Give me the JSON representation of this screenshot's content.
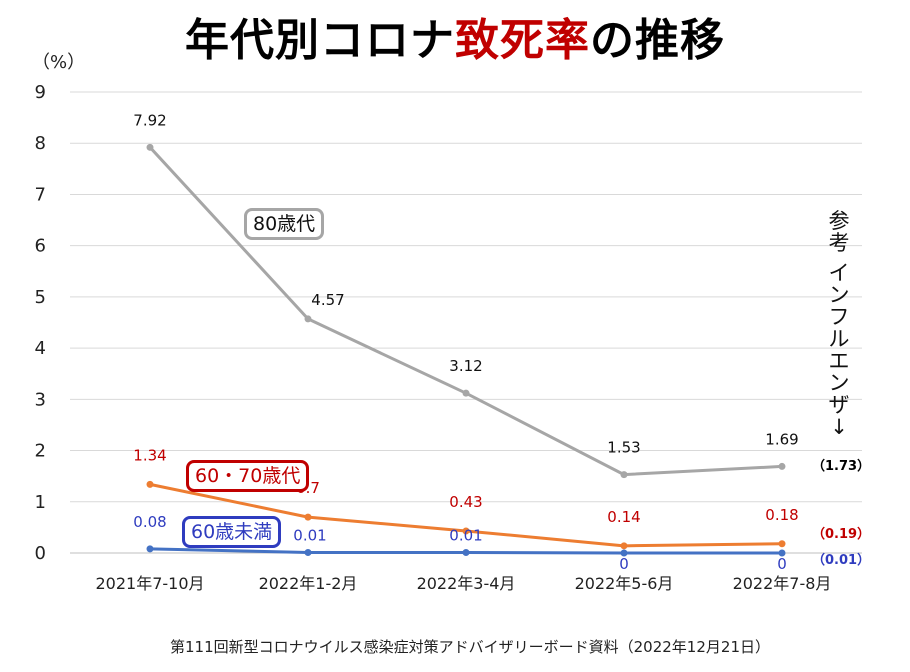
{
  "title": {
    "part1": "年代別コロナ",
    "accent": "致死率",
    "part2": "の推移"
  },
  "unit_label": "（%）",
  "source": "第111回新型コロナウイルス感染症対策アドバイザリーボード資料（2022年12月21日）",
  "reference": {
    "label_chars": [
      "参",
      "考",
      " ",
      "イ",
      "ン",
      "フ",
      "ル",
      "エ",
      "ン",
      "ザ"
    ],
    "arrow": "↓",
    "values": [
      {
        "text": "（1.73）",
        "color": "#111111"
      },
      {
        "text": "（0.19）",
        "color": "#c00000"
      },
      {
        "text": "（0.01）",
        "color": "#2f3cbf"
      }
    ]
  },
  "chart_data": {
    "type": "line",
    "categories": [
      "2021年7-10月",
      "2022年1-2月",
      "2022年3-4月",
      "2022年5-6月",
      "2022年7-8月"
    ],
    "ylim": [
      0,
      9
    ],
    "yticks": [
      "0",
      "1",
      "2",
      "3",
      "4",
      "5",
      "6",
      "7",
      "8",
      "9"
    ],
    "grid": true,
    "series": [
      {
        "name": "80歳代",
        "color": "#a6a6a6",
        "values": [
          7.92,
          4.57,
          3.12,
          1.53,
          1.69
        ],
        "labels": [
          "7.92",
          "4.57",
          "3.12",
          "1.53",
          "1.69"
        ],
        "label_color": "#111111"
      },
      {
        "name": "60・70歳代",
        "color": "#ed7d31",
        "values": [
          1.34,
          0.7,
          0.43,
          0.14,
          0.18
        ],
        "labels": [
          "1.34",
          "0.7",
          "0.43",
          "0.14",
          "0.18"
        ],
        "label_color": "#c00000"
      },
      {
        "name": "60歳未満",
        "color": "#4472c4",
        "values": [
          0.08,
          0.01,
          0.01,
          0,
          0
        ],
        "labels": [
          "0.08",
          "0.01",
          "0.01",
          "0",
          "0"
        ],
        "label_color": "#2f3cbf"
      }
    ]
  }
}
